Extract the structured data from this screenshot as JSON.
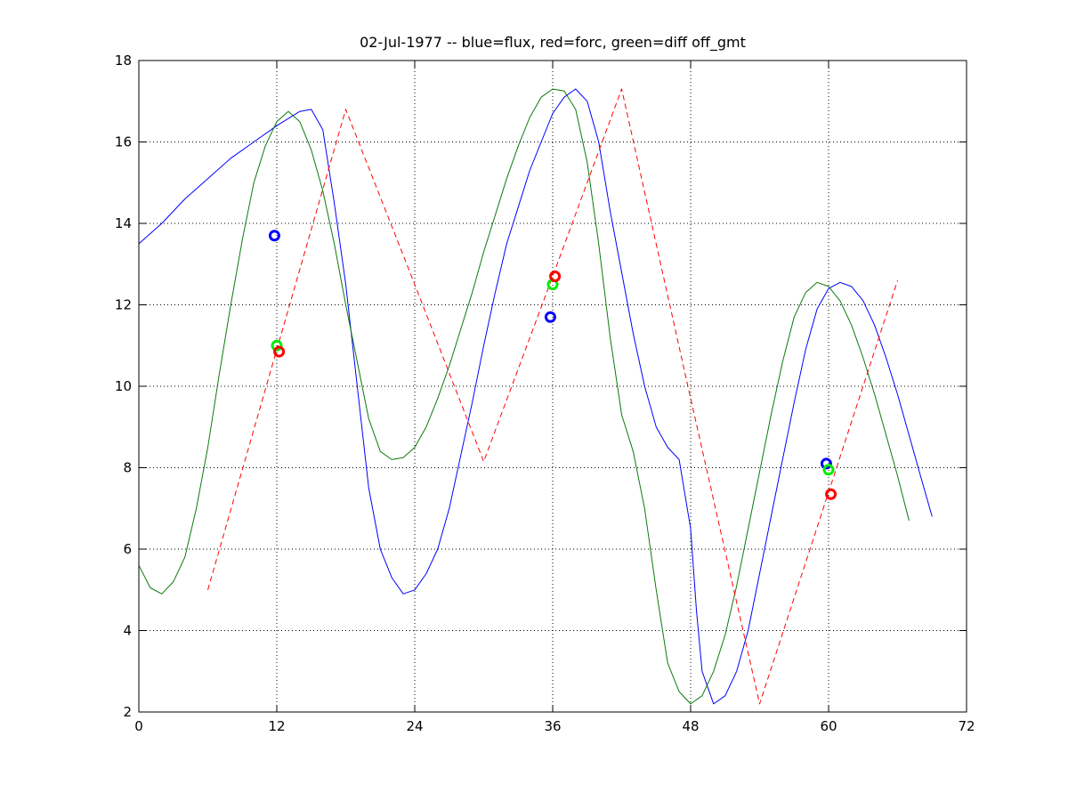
{
  "chart_data": {
    "type": "line",
    "title": "02-Jul-1977 -- blue=flux, red=forc, green=diff off_gmt",
    "xlabel": "",
    "ylabel": "",
    "xlim": [
      0,
      72
    ],
    "ylim": [
      2,
      18
    ],
    "xticks": [
      0,
      12,
      24,
      36,
      48,
      60,
      72
    ],
    "yticks": [
      2,
      4,
      6,
      8,
      10,
      12,
      14,
      16,
      18
    ],
    "grid": true,
    "grid_style": "dotted",
    "series": [
      {
        "color": "#0000ff",
        "style": "solid",
        "points": [
          [
            0,
            13.5
          ],
          [
            2,
            14.0
          ],
          [
            4,
            14.6
          ],
          [
            6,
            15.1
          ],
          [
            8,
            15.6
          ],
          [
            10,
            16.0
          ],
          [
            12,
            16.4
          ],
          [
            14,
            16.75
          ],
          [
            15,
            16.8
          ],
          [
            16,
            16.3
          ],
          [
            17,
            14.5
          ],
          [
            18,
            12.5
          ],
          [
            19,
            10.0
          ],
          [
            20,
            7.5
          ],
          [
            21,
            6.0
          ],
          [
            22,
            5.3
          ],
          [
            23,
            4.9
          ],
          [
            24,
            5.0
          ],
          [
            25,
            5.4
          ],
          [
            26,
            6.0
          ],
          [
            27,
            7.0
          ],
          [
            28,
            8.3
          ],
          [
            29,
            9.6
          ],
          [
            30,
            11.0
          ],
          [
            31,
            12.3
          ],
          [
            32,
            13.5
          ],
          [
            33,
            14.4
          ],
          [
            34,
            15.3
          ],
          [
            35,
            16.0
          ],
          [
            36,
            16.7
          ],
          [
            37,
            17.1
          ],
          [
            38,
            17.3
          ],
          [
            39,
            17.0
          ],
          [
            40,
            16.0
          ],
          [
            41,
            14.3
          ],
          [
            42,
            12.8
          ],
          [
            43,
            11.3
          ],
          [
            44,
            10.0
          ],
          [
            45,
            9.0
          ],
          [
            46,
            8.5
          ],
          [
            47,
            8.2
          ],
          [
            48,
            6.5
          ],
          [
            48.5,
            4.5
          ],
          [
            49,
            3.0
          ],
          [
            50,
            2.2
          ],
          [
            51,
            2.4
          ],
          [
            52,
            3.0
          ],
          [
            53,
            4.0
          ],
          [
            54,
            5.4
          ],
          [
            55,
            6.8
          ],
          [
            56,
            8.2
          ],
          [
            57,
            9.6
          ],
          [
            58,
            10.9
          ],
          [
            59,
            11.9
          ],
          [
            60,
            12.4
          ],
          [
            61,
            12.55
          ],
          [
            62,
            12.45
          ],
          [
            63,
            12.1
          ],
          [
            64,
            11.5
          ],
          [
            65,
            10.7
          ],
          [
            66,
            9.8
          ],
          [
            67,
            8.8
          ],
          [
            68,
            7.8
          ],
          [
            69,
            6.8
          ]
        ]
      },
      {
        "color": "#0c7a0c",
        "style": "solid",
        "points": [
          [
            0,
            5.6
          ],
          [
            1,
            5.05
          ],
          [
            2,
            4.9
          ],
          [
            3,
            5.2
          ],
          [
            4,
            5.8
          ],
          [
            5,
            7.0
          ],
          [
            6,
            8.5
          ],
          [
            7,
            10.3
          ],
          [
            8,
            12.0
          ],
          [
            9,
            13.6
          ],
          [
            10,
            15.0
          ],
          [
            11,
            15.9
          ],
          [
            12,
            16.5
          ],
          [
            13,
            16.75
          ],
          [
            14,
            16.5
          ],
          [
            15,
            15.8
          ],
          [
            16,
            14.8
          ],
          [
            17,
            13.5
          ],
          [
            18,
            12.0
          ],
          [
            19,
            10.6
          ],
          [
            20,
            9.2
          ],
          [
            21,
            8.4
          ],
          [
            22,
            8.2
          ],
          [
            23,
            8.25
          ],
          [
            24,
            8.5
          ],
          [
            25,
            9.0
          ],
          [
            26,
            9.7
          ],
          [
            27,
            10.5
          ],
          [
            28,
            11.4
          ],
          [
            29,
            12.3
          ],
          [
            30,
            13.3
          ],
          [
            31,
            14.2
          ],
          [
            32,
            15.1
          ],
          [
            33,
            15.9
          ],
          [
            34,
            16.6
          ],
          [
            35,
            17.1
          ],
          [
            36,
            17.3
          ],
          [
            37,
            17.25
          ],
          [
            38,
            16.8
          ],
          [
            39,
            15.5
          ],
          [
            40,
            13.5
          ],
          [
            41,
            11.2
          ],
          [
            42,
            9.3
          ],
          [
            43,
            8.4
          ],
          [
            44,
            7.0
          ],
          [
            45,
            5.0
          ],
          [
            46,
            3.2
          ],
          [
            47,
            2.5
          ],
          [
            48,
            2.2
          ],
          [
            49,
            2.4
          ],
          [
            50,
            3.0
          ],
          [
            51,
            3.9
          ],
          [
            52,
            5.1
          ],
          [
            53,
            6.5
          ],
          [
            54,
            7.9
          ],
          [
            55,
            9.3
          ],
          [
            56,
            10.6
          ],
          [
            57,
            11.7
          ],
          [
            58,
            12.3
          ],
          [
            59,
            12.55
          ],
          [
            60,
            12.45
          ],
          [
            61,
            12.1
          ],
          [
            62,
            11.5
          ],
          [
            63,
            10.7
          ],
          [
            64,
            9.8
          ],
          [
            65,
            8.8
          ],
          [
            66,
            7.8
          ],
          [
            67,
            6.7
          ]
        ]
      },
      {
        "color": "#ff0000",
        "style": "dashed",
        "points": [
          [
            6,
            5.0
          ],
          [
            12,
            10.9
          ],
          [
            18,
            16.8
          ],
          [
            24,
            12.5
          ],
          [
            30,
            8.15
          ],
          [
            36,
            12.7
          ],
          [
            42,
            17.3
          ],
          [
            48,
            9.7
          ],
          [
            54,
            2.2
          ],
          [
            60,
            7.4
          ],
          [
            66,
            12.6
          ]
        ]
      }
    ],
    "markers": [
      {
        "x": 11.8,
        "y": 13.7,
        "color": "#0000ff"
      },
      {
        "x": 12.0,
        "y": 11.0,
        "color": "#00ee00"
      },
      {
        "x": 12.2,
        "y": 10.85,
        "color": "#ff0000"
      },
      {
        "x": 35.8,
        "y": 11.7,
        "color": "#0000ff"
      },
      {
        "x": 36.0,
        "y": 12.5,
        "color": "#00ee00"
      },
      {
        "x": 36.2,
        "y": 12.7,
        "color": "#ff0000"
      },
      {
        "x": 59.8,
        "y": 8.1,
        "color": "#0000ff"
      },
      {
        "x": 60.0,
        "y": 7.95,
        "color": "#00ee00"
      },
      {
        "x": 60.2,
        "y": 7.35,
        "color": "#ff0000"
      }
    ]
  }
}
